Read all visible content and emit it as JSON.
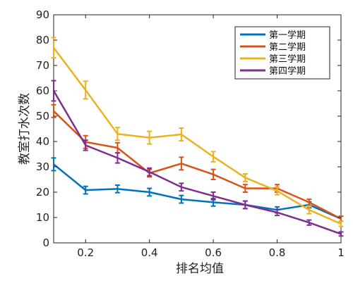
{
  "chart_data": {
    "type": "line",
    "xlabel": "排名均值",
    "ylabel": "教室打水次数",
    "xlim": [
      0.1,
      1.0
    ],
    "ylim": [
      0,
      90
    ],
    "x_ticks": [
      0.2,
      0.4,
      0.6,
      0.8,
      1
    ],
    "x_tick_labels": [
      "0.2",
      "0.4",
      "0.6",
      "0.8",
      "1"
    ],
    "y_ticks": [
      0,
      10,
      20,
      30,
      40,
      50,
      60,
      70,
      80,
      90
    ],
    "y_tick_labels": [
      "0",
      "10",
      "20",
      "30",
      "40",
      "50",
      "60",
      "70",
      "80",
      "90"
    ],
    "grid": false,
    "legend_position": "top-right",
    "x": [
      0.1,
      0.2,
      0.3,
      0.4,
      0.5,
      0.6,
      0.7,
      0.8,
      0.9,
      1.0
    ],
    "series": [
      {
        "name": "第一学期",
        "color": "#0072BD",
        "values": [
          31,
          20.8,
          21.3,
          20,
          17.2,
          16,
          15,
          13,
          15,
          9.5
        ],
        "errors": [
          2.5,
          1.5,
          1.5,
          1.5,
          1.5,
          1.5,
          1.5,
          1.2,
          1.2,
          1.0
        ]
      },
      {
        "name": "第二学期",
        "color": "#D95319",
        "values": [
          52,
          39.8,
          37.5,
          27.5,
          31.3,
          27,
          21.5,
          21.5,
          16,
          9.5
        ],
        "errors": [
          2.5,
          2.5,
          2.0,
          1.5,
          2.5,
          2.0,
          1.5,
          1.5,
          1.2,
          1.0
        ]
      },
      {
        "name": "第三学期",
        "color": "#EDB120",
        "values": [
          77,
          60.3,
          43,
          41.5,
          42.8,
          34,
          25.7,
          20.5,
          13,
          7.5
        ],
        "errors": [
          4.0,
          3.5,
          2.5,
          2.5,
          2.5,
          2.0,
          1.5,
          1.5,
          1.5,
          1.0
        ]
      },
      {
        "name": "第四学期",
        "color": "#7E2F8E",
        "values": [
          60,
          38.5,
          33.5,
          28,
          22,
          18.5,
          15,
          12,
          8,
          3.5
        ],
        "errors": [
          4.0,
          2.0,
          2.0,
          1.5,
          1.5,
          1.5,
          1.5,
          1.2,
          1.0,
          0.8
        ]
      }
    ]
  }
}
